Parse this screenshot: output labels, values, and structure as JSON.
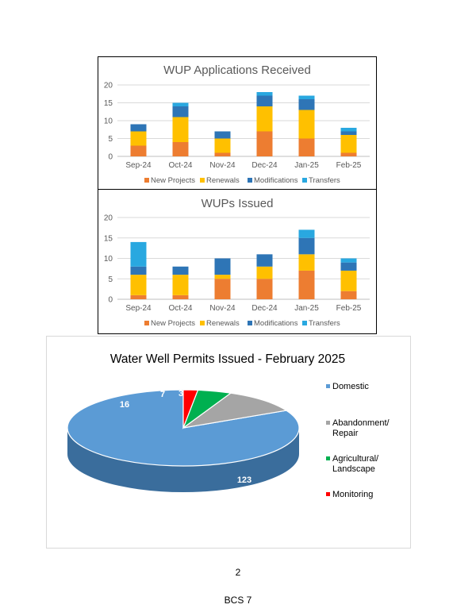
{
  "colors": {
    "new_projects": "#ed7d31",
    "renewals": "#ffc000",
    "modifications": "#2e75b6",
    "transfers": "#29a8e0",
    "domestic": "#5b9bd5",
    "abandonment": "#a5a5a5",
    "agricultural": "#00b050",
    "monitoring": "#ff0000"
  },
  "chart_data": [
    {
      "type": "bar",
      "stacked": true,
      "title": "WUP Applications Received",
      "categories": [
        "Sep-24",
        "Oct-24",
        "Nov-24",
        "Dec-24",
        "Jan-25",
        "Feb-25"
      ],
      "ylim": [
        0,
        20
      ],
      "yticks": [
        0,
        5,
        10,
        15,
        20
      ],
      "grid": true,
      "legend_position": "bottom",
      "series": [
        {
          "name": "New Projects",
          "values": [
            3,
            4,
            1,
            7,
            5,
            1
          ]
        },
        {
          "name": "Renewals",
          "values": [
            4,
            7,
            4,
            7,
            8,
            5
          ]
        },
        {
          "name": "Modifications",
          "values": [
            2,
            3,
            2,
            3,
            3,
            1
          ]
        },
        {
          "name": "Transfers",
          "values": [
            0,
            1,
            0,
            1,
            1,
            1
          ]
        }
      ]
    },
    {
      "type": "bar",
      "stacked": true,
      "title": "WUPs Issued",
      "categories": [
        "Sep-24",
        "Oct-24",
        "Nov-24",
        "Dec-24",
        "Jan-25",
        "Feb-25"
      ],
      "ylim": [
        0,
        20
      ],
      "yticks": [
        0,
        5,
        10,
        15,
        20
      ],
      "grid": true,
      "legend_position": "bottom",
      "series": [
        {
          "name": "New Projects",
          "values": [
            1,
            1,
            5,
            5,
            7,
            2
          ]
        },
        {
          "name": "Renewals",
          "values": [
            5,
            5,
            1,
            3,
            4,
            5
          ]
        },
        {
          "name": "Modifications",
          "values": [
            2,
            2,
            4,
            3,
            4,
            2
          ]
        },
        {
          "name": "Transfers",
          "values": [
            6,
            0,
            0,
            0,
            2,
            1
          ]
        }
      ]
    },
    {
      "type": "pie",
      "title": "Water Well Permits Issued - February 2025",
      "legend_position": "right",
      "slices": [
        {
          "label": "Domestic",
          "value": 123
        },
        {
          "label": "Abandonment/ Repair",
          "value": 16
        },
        {
          "label": "Agricultural/ Landscape",
          "value": 7
        },
        {
          "label": "Monitoring",
          "value": 3
        }
      ]
    }
  ],
  "footer": {
    "page_number": "2",
    "code": "BCS 7"
  }
}
